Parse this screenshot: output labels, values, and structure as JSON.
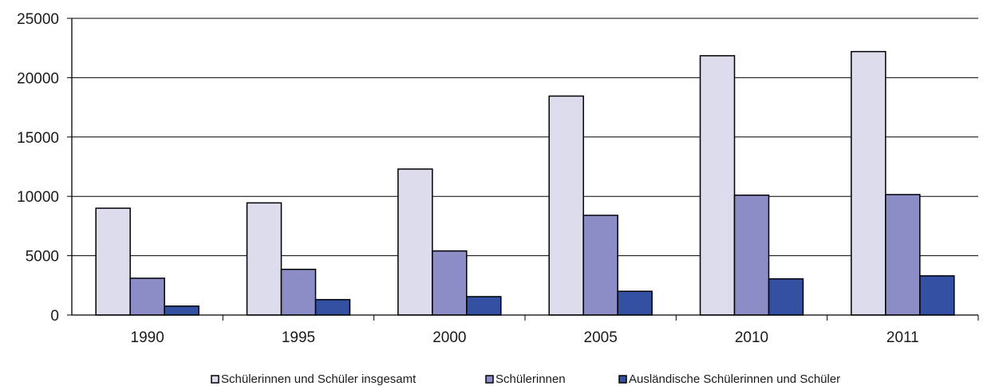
{
  "chart_data": {
    "type": "bar",
    "title": "",
    "xlabel": "",
    "ylabel": "",
    "categories": [
      "1990",
      "1995",
      "2000",
      "2005",
      "2010",
      "2011"
    ],
    "ylim": [
      0,
      25000
    ],
    "yticks": [
      0,
      5000,
      10000,
      15000,
      20000,
      25000
    ],
    "grid": true,
    "legend_position": "bottom",
    "series": [
      {
        "name": "Schülerinnen und Schüler insgesamt",
        "color": "#dcdcec",
        "values": [
          9000,
          9450,
          12300,
          18450,
          21850,
          22200
        ]
      },
      {
        "name": "Schülerinnen",
        "color": "#8c8cc6",
        "values": [
          3100,
          3850,
          5400,
          8400,
          10100,
          10150
        ]
      },
      {
        "name": "Ausländische Schülerinnen und Schüler",
        "color": "#3350a3",
        "values": [
          750,
          1300,
          1550,
          2000,
          3050,
          3300
        ]
      }
    ]
  }
}
